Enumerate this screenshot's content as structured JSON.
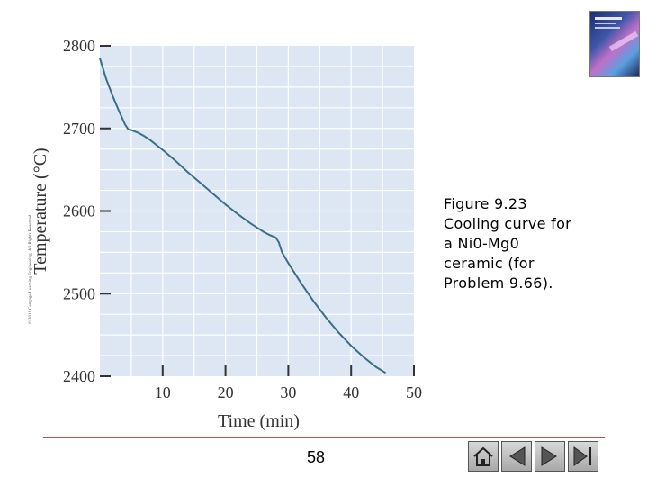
{
  "copyright_text": "© 2011 Cengage Learning Engineering. All Rights Reserved.",
  "caption": {
    "lines": [
      "Figure 9.23",
      "Cooling curve for",
      "a Ni0-Mg0",
      "ceramic (for",
      "Problem 9.66)."
    ]
  },
  "page_number": "58",
  "book_cover": {
    "icon": "book-cover-thumbnail"
  },
  "nav": {
    "buttons": [
      {
        "name": "home-button",
        "icon": "home-icon"
      },
      {
        "name": "first-button",
        "icon": "first-icon"
      },
      {
        "name": "next-button",
        "icon": "next-icon"
      },
      {
        "name": "last-button",
        "icon": "last-icon"
      }
    ]
  },
  "colors": {
    "plot_bg": "#dce7f3",
    "curve": "#3a6f8a",
    "grid": "#ffffff",
    "rule": "#c0504d"
  },
  "chart_data": {
    "type": "line",
    "title": "",
    "xlabel": "Time (min)",
    "ylabel": "Temperature (°C)",
    "xlim": [
      0,
      50
    ],
    "ylim": [
      2400,
      2800
    ],
    "xticks": [
      10,
      20,
      30,
      40,
      50
    ],
    "yticks": [
      2400,
      2500,
      2600,
      2700,
      2800
    ],
    "grid": true,
    "series": [
      {
        "x": [
          0,
          1,
          2,
          3,
          4,
          4.5,
          5,
          6,
          7,
          8,
          10,
          12,
          14,
          16,
          18,
          20,
          22,
          24,
          26,
          27,
          28,
          28.5,
          29,
          30,
          32,
          34,
          36,
          38,
          40,
          42,
          44,
          45.5
        ],
        "y": [
          2785,
          2760,
          2740,
          2722,
          2705,
          2699,
          2698,
          2695,
          2691,
          2686,
          2674,
          2661,
          2647,
          2634,
          2621,
          2608,
          2596,
          2585,
          2575,
          2571,
          2568,
          2562,
          2550,
          2537,
          2513,
          2491,
          2471,
          2453,
          2437,
          2423,
          2411,
          2404
        ]
      }
    ]
  }
}
